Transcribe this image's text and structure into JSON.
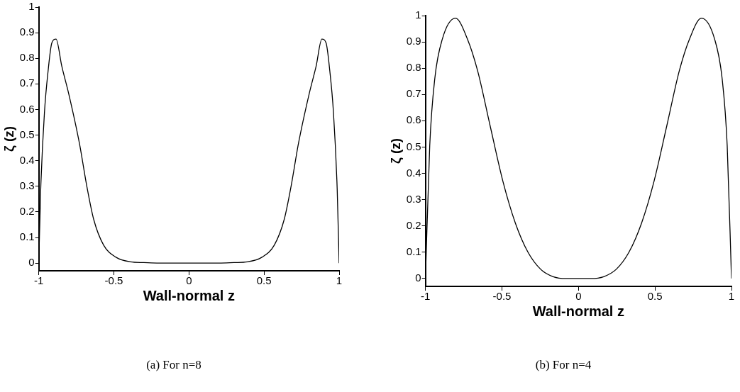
{
  "chart_data": [
    {
      "type": "line",
      "xlabel": "Wall-normal z",
      "ylabel": "ζ (z)",
      "xlim": [
        -1,
        1
      ],
      "ylim": [
        -0.03,
        1
      ],
      "xticks": [
        -1,
        -0.5,
        0,
        0.5,
        1
      ],
      "yticks": [
        0,
        0.1,
        0.2,
        0.3,
        0.4,
        0.5,
        0.6,
        0.7,
        0.8,
        0.9,
        1
      ],
      "grid": false,
      "annotations": [
        "(a) For n=8"
      ],
      "x": [
        -1,
        -0.987,
        -0.962,
        -0.938,
        -0.913,
        -0.885,
        -0.847,
        -0.8,
        -0.73,
        -0.68,
        -0.634,
        -0.568,
        -0.486,
        -0.39,
        -0.3,
        -0.2,
        0,
        0.2,
        0.3,
        0.39,
        0.486,
        0.568,
        0.634,
        0.68,
        0.73,
        0.8,
        0.847,
        0.885,
        0.913,
        0.938,
        0.962,
        0.987,
        1
      ],
      "series": [
        {
          "color": "#000000",
          "values": [
            0,
            0.29,
            0.59,
            0.75,
            0.86,
            0.875,
            0.77,
            0.66,
            0.47,
            0.3,
            0.17,
            0.07,
            0.023,
            0.005,
            0.002,
            0,
            0,
            0,
            0.002,
            0.005,
            0.023,
            0.07,
            0.17,
            0.3,
            0.47,
            0.66,
            0.77,
            0.875,
            0.86,
            0.75,
            0.59,
            0.29,
            0
          ]
        }
      ]
    },
    {
      "type": "line",
      "xlabel": "Wall-normal z",
      "ylabel": "ζ (z)",
      "xlim": [
        -1,
        1
      ],
      "ylim": [
        -0.03,
        1
      ],
      "xticks": [
        -1,
        -0.5,
        0,
        0.5,
        1
      ],
      "yticks": [
        0,
        0.1,
        0.2,
        0.3,
        0.4,
        0.5,
        0.6,
        0.7,
        0.8,
        0.9,
        1
      ],
      "grid": false,
      "annotations": [
        "(b) For n=4"
      ],
      "x": [
        -1,
        -0.972,
        -0.939,
        -0.89,
        -0.804,
        -0.725,
        -0.659,
        -0.577,
        -0.494,
        -0.412,
        -0.33,
        -0.247,
        -0.165,
        -0.082,
        0,
        0.082,
        0.165,
        0.247,
        0.33,
        0.412,
        0.494,
        0.577,
        0.659,
        0.725,
        0.804,
        0.89,
        0.939,
        0.972,
        1
      ],
      "series": [
        {
          "color": "#000000",
          "values": [
            0,
            0.505,
            0.76,
            0.91,
            0.99,
            0.91,
            0.79,
            0.58,
            0.37,
            0.21,
            0.1,
            0.035,
            0.007,
            0,
            0,
            0,
            0.007,
            0.035,
            0.1,
            0.21,
            0.37,
            0.58,
            0.79,
            0.91,
            0.99,
            0.91,
            0.76,
            0.505,
            0
          ]
        }
      ]
    }
  ]
}
